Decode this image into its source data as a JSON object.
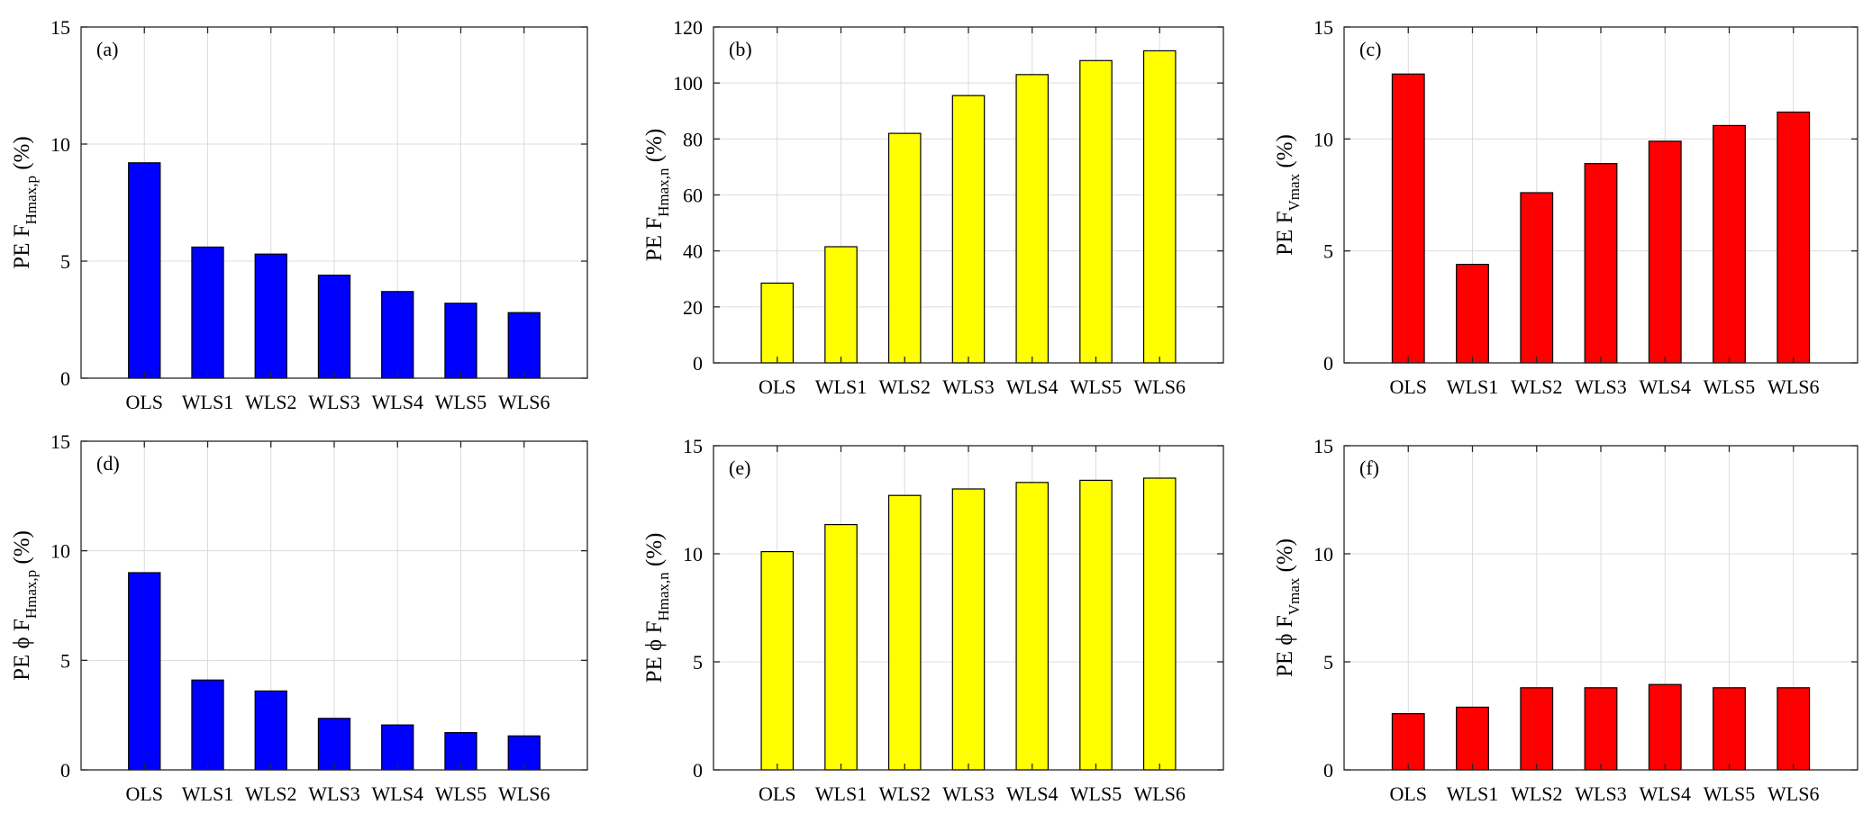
{
  "colors": {
    "blue": "#0000ff",
    "yellow": "#ffff00",
    "red": "#ff0000"
  },
  "chart_data": [
    {
      "type": "bar",
      "panel_label": "(a)",
      "ylabel": {
        "pre": "PE F",
        "sub": "Hmax,p",
        "post": " (%)"
      },
      "categories": [
        "OLS",
        "WLS1",
        "WLS2",
        "WLS3",
        "WLS4",
        "WLS5",
        "WLS6"
      ],
      "values": [
        9.2,
        5.6,
        5.3,
        4.4,
        3.7,
        3.2,
        2.8
      ],
      "ylim": [
        0,
        15
      ],
      "yticks": [
        0,
        5,
        10,
        15
      ],
      "color": "#0000ff",
      "grid": true
    },
    {
      "type": "bar",
      "panel_label": "(b)",
      "ylabel": {
        "pre": "PE F",
        "sub": "Hmax,n",
        "post": " (%)"
      },
      "categories": [
        "OLS",
        "WLS1",
        "WLS2",
        "WLS3",
        "WLS4",
        "WLS5",
        "WLS6"
      ],
      "values": [
        28.5,
        41.5,
        82,
        95.5,
        103,
        108,
        111.5
      ],
      "ylim": [
        0,
        120
      ],
      "yticks": [
        0,
        20,
        40,
        60,
        80,
        100,
        120
      ],
      "color": "#ffff00",
      "grid": true
    },
    {
      "type": "bar",
      "panel_label": "(c)",
      "ylabel": {
        "pre": "PE F",
        "sub": "Vmax",
        "post": " (%)"
      },
      "categories": [
        "OLS",
        "WLS1",
        "WLS2",
        "WLS3",
        "WLS4",
        "WLS5",
        "WLS6"
      ],
      "values": [
        12.9,
        4.4,
        7.6,
        8.9,
        9.9,
        10.6,
        11.2
      ],
      "ylim": [
        0,
        15
      ],
      "yticks": [
        0,
        5,
        10,
        15
      ],
      "color": "#ff0000",
      "grid": true
    },
    {
      "type": "bar",
      "panel_label": "(d)",
      "ylabel": {
        "pre": "PE ϕ F",
        "sub": "Hmax,p",
        "post": " (%)"
      },
      "categories": [
        "OLS",
        "WLS1",
        "WLS2",
        "WLS3",
        "WLS4",
        "WLS5",
        "WLS6"
      ],
      "values": [
        9.0,
        4.1,
        3.6,
        2.35,
        2.05,
        1.7,
        1.55
      ],
      "ylim": [
        0,
        15
      ],
      "yticks": [
        0,
        5,
        10,
        15
      ],
      "color": "#0000ff",
      "grid": true
    },
    {
      "type": "bar",
      "panel_label": "(e)",
      "ylabel": {
        "pre": "PE ϕ F",
        "sub": "Hmax,n",
        "post": " (%)"
      },
      "categories": [
        "OLS",
        "WLS1",
        "WLS2",
        "WLS3",
        "WLS4",
        "WLS5",
        "WLS6"
      ],
      "values": [
        10.1,
        11.35,
        12.7,
        13.0,
        13.3,
        13.4,
        13.5
      ],
      "ylim": [
        0,
        15
      ],
      "yticks": [
        0,
        5,
        10,
        15
      ],
      "color": "#ffff00",
      "grid": true
    },
    {
      "type": "bar",
      "panel_label": "(f)",
      "ylabel": {
        "pre": "PE ϕ F",
        "sub": "Vmax",
        "post": " (%)"
      },
      "categories": [
        "OLS",
        "WLS1",
        "WLS2",
        "WLS3",
        "WLS4",
        "WLS5",
        "WLS6"
      ],
      "values": [
        2.6,
        2.9,
        3.8,
        3.8,
        3.95,
        3.8,
        3.8
      ],
      "ylim": [
        0,
        15
      ],
      "yticks": [
        0,
        5,
        10,
        15
      ],
      "color": "#ff0000",
      "grid": true
    }
  ]
}
